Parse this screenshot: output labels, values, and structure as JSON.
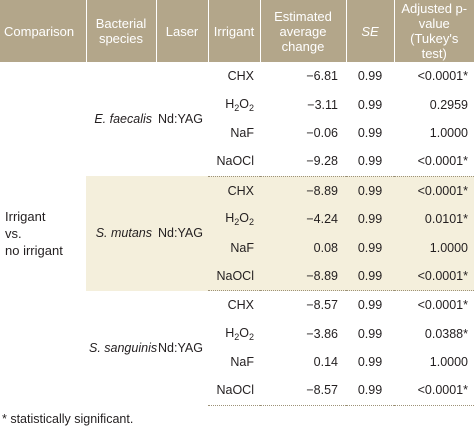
{
  "headers": {
    "comparison": "Comparison",
    "species": "Bacterial species",
    "laser": "Laser",
    "irrigant": "Irrigant",
    "change": "Estimated average change",
    "se": "SE",
    "pvalue": "Adjusted p-value (Tukey's test)"
  },
  "comparison_label_lines": [
    "Irrigant",
    "vs.",
    "no irrigant"
  ],
  "groups": [
    {
      "species": "E. faecalis",
      "laser": "Nd:YAG",
      "rows": [
        {
          "irrigant": "CHX",
          "change": "−6.81",
          "se": "0.99",
          "p": "<0.0001*"
        },
        {
          "irrigant": "H2O2",
          "change": "−3.11",
          "se": "0.99",
          "p": "0.2959"
        },
        {
          "irrigant": "NaF",
          "change": "−0.06",
          "se": "0.99",
          "p": "1.0000"
        },
        {
          "irrigant": "NaOCl",
          "change": "−9.28",
          "se": "0.99",
          "p": "<0.0001*"
        }
      ]
    },
    {
      "species": "S. mutans",
      "laser": "Nd:YAG",
      "rows": [
        {
          "irrigant": "CHX",
          "change": "−8.89",
          "se": "0.99",
          "p": "<0.0001*"
        },
        {
          "irrigant": "H2O2",
          "change": "−4.24",
          "se": "0.99",
          "p": "0.0101*"
        },
        {
          "irrigant": "NaF",
          "change": "0.08",
          "se": "0.99",
          "p": "1.0000"
        },
        {
          "irrigant": "NaOCl",
          "change": "−8.89",
          "se": "0.99",
          "p": "<0.0001*"
        }
      ]
    },
    {
      "species": "S. sanguinis",
      "laser": "Nd:YAG",
      "rows": [
        {
          "irrigant": "CHX",
          "change": "−8.57",
          "se": "0.99",
          "p": "<0.0001*"
        },
        {
          "irrigant": "H2O2",
          "change": "−3.86",
          "se": "0.99",
          "p": "0.0388*"
        },
        {
          "irrigant": "NaF",
          "change": "0.14",
          "se": "0.99",
          "p": "1.0000"
        },
        {
          "irrigant": "NaOCl",
          "change": "−8.57",
          "se": "0.99",
          "p": "<0.0001*"
        }
      ]
    }
  ],
  "footnote": "* statistically significant.",
  "colors": {
    "header_bg": "#b3a68a",
    "shade_bg": "#f4efdc",
    "text": "#231f20"
  }
}
